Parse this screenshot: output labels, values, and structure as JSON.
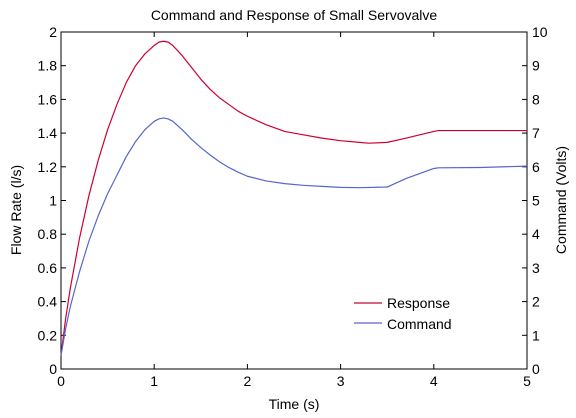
{
  "chart_data": {
    "type": "line",
    "title": "Command and Response of Small Servovalve",
    "xlabel": "Time (s)",
    "ylabel_left": "Flow Rate (l/s)",
    "ylabel_right": "Command (Volts)",
    "xlim": [
      0,
      5
    ],
    "ylim_left": [
      0,
      2
    ],
    "ylim_right": [
      0,
      10
    ],
    "x_ticks": [
      "0",
      "1",
      "2",
      "3",
      "4",
      "5"
    ],
    "y_ticks_left": [
      "0",
      "0.2",
      "0.4",
      "0.6",
      "0.8",
      "1",
      "1.2",
      "1.4",
      "1.6",
      "1.8",
      "2"
    ],
    "y_ticks_right": [
      "0",
      "1",
      "2",
      "3",
      "4",
      "5",
      "6",
      "7",
      "8",
      "9",
      "10"
    ],
    "grid": false,
    "legend_position": "lower-right",
    "series": [
      {
        "name": "Response",
        "axis": "left",
        "color": "#cc0033",
        "x": [
          0,
          0.05,
          0.1,
          0.2,
          0.3,
          0.4,
          0.5,
          0.6,
          0.7,
          0.8,
          0.9,
          1.0,
          1.05,
          1.1,
          1.15,
          1.2,
          1.3,
          1.4,
          1.5,
          1.6,
          1.7,
          1.8,
          1.9,
          2.0,
          2.2,
          2.4,
          2.6,
          2.8,
          3.0,
          3.2,
          3.3,
          3.5,
          3.7,
          4.0,
          4.05,
          4.3,
          4.6,
          5.0
        ],
        "y": [
          0.08,
          0.3,
          0.48,
          0.78,
          1.03,
          1.24,
          1.42,
          1.57,
          1.7,
          1.8,
          1.87,
          1.92,
          1.94,
          1.945,
          1.94,
          1.92,
          1.86,
          1.79,
          1.72,
          1.66,
          1.61,
          1.57,
          1.53,
          1.5,
          1.45,
          1.41,
          1.39,
          1.37,
          1.355,
          1.345,
          1.34,
          1.345,
          1.37,
          1.41,
          1.415,
          1.415,
          1.415,
          1.415
        ]
      },
      {
        "name": "Command",
        "axis": "right",
        "color": "#5566cc",
        "x": [
          0,
          0.05,
          0.1,
          0.2,
          0.3,
          0.4,
          0.5,
          0.6,
          0.7,
          0.8,
          0.9,
          1.0,
          1.05,
          1.1,
          1.15,
          1.2,
          1.3,
          1.4,
          1.5,
          1.6,
          1.7,
          1.8,
          1.9,
          2.0,
          2.2,
          2.4,
          2.6,
          2.8,
          3.0,
          3.2,
          3.5,
          3.7,
          4.0,
          4.05,
          4.5,
          5.0
        ],
        "y": [
          0.4,
          1.2,
          1.85,
          2.9,
          3.8,
          4.55,
          5.2,
          5.75,
          6.3,
          6.75,
          7.1,
          7.35,
          7.42,
          7.45,
          7.42,
          7.35,
          7.1,
          6.82,
          6.57,
          6.35,
          6.15,
          5.98,
          5.84,
          5.72,
          5.58,
          5.5,
          5.45,
          5.42,
          5.39,
          5.38,
          5.4,
          5.65,
          5.95,
          5.97,
          5.98,
          6.02
        ]
      }
    ]
  }
}
